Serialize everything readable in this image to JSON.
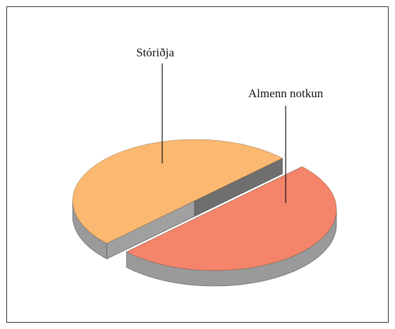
{
  "chart_data": {
    "type": "pie",
    "categories": [
      "Stóriðja",
      "Almenn notkun"
    ],
    "values": [
      50,
      50
    ],
    "colors": [
      "#fbb870",
      "#f4846a"
    ]
  }
}
